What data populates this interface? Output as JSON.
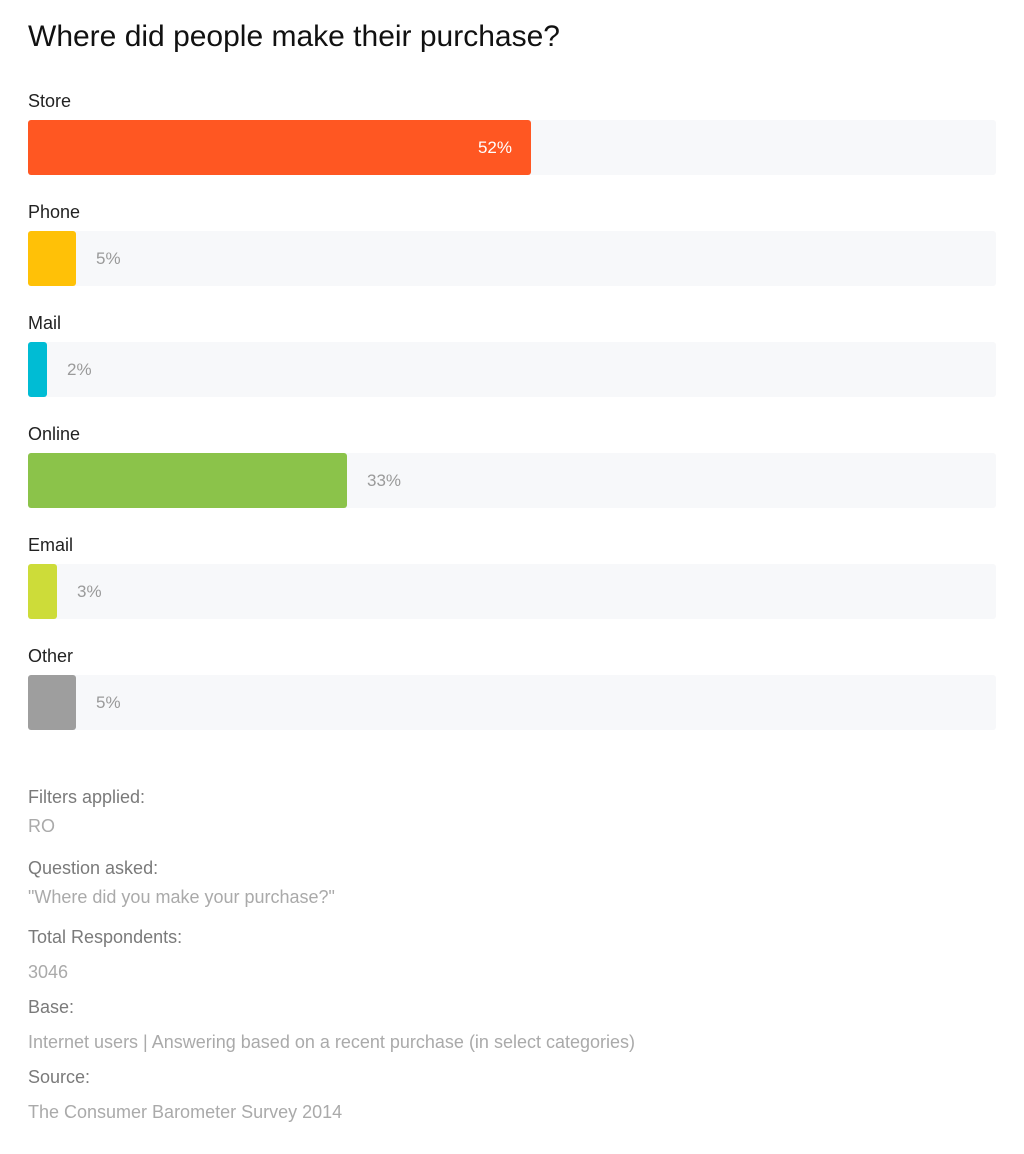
{
  "chart_data": {
    "type": "bar",
    "orientation": "horizontal",
    "title": "Where did people make their purchase?",
    "value_suffix": "%",
    "xlim": [
      0,
      100
    ],
    "grid": false,
    "categories": [
      "Store",
      "Phone",
      "Mail",
      "Online",
      "Email",
      "Other"
    ],
    "values": [
      52,
      5,
      2,
      33,
      3,
      5
    ],
    "colors": [
      "#ff5722",
      "#ffc107",
      "#00bcd4",
      "#8bc34a",
      "#cddc39",
      "#9e9e9e"
    ]
  },
  "meta": {
    "filters_label": "Filters applied:",
    "filters_value": "RO",
    "question_label": "Question asked:",
    "question_value": "\"Where did you make your purchase?\"",
    "respondents_label": "Total Respondents:",
    "respondents_value": "3046",
    "base_label": "Base:",
    "base_value": "Internet users | Answering based on a recent purchase (in select categories)",
    "source_label": "Source:",
    "source_value": "The Consumer Barometer Survey 2014"
  }
}
